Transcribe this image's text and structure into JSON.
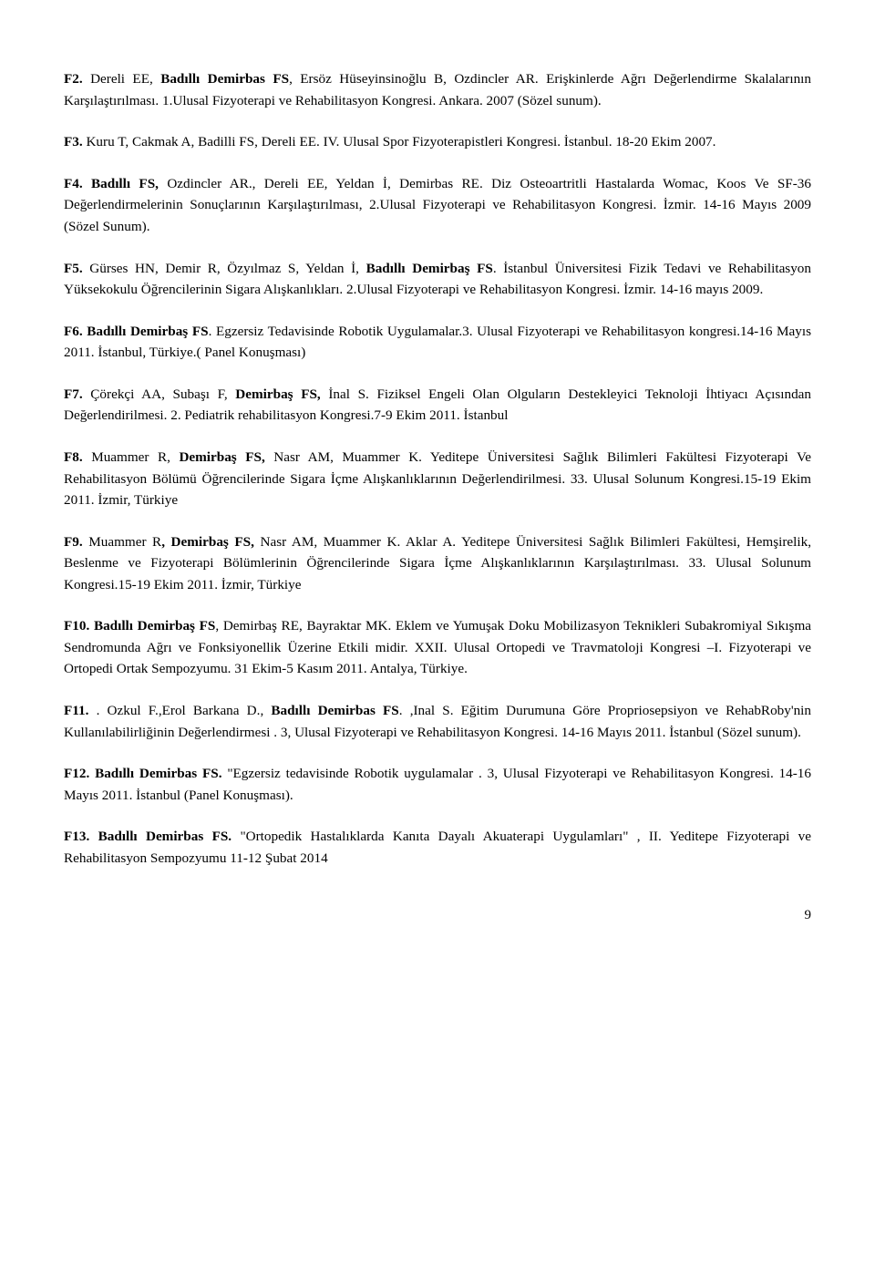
{
  "entries": [
    {
      "parts": [
        {
          "t": "F2. ",
          "b": true
        },
        {
          "t": "Dereli EE, ",
          "b": false
        },
        {
          "t": "Badıllı Demirbas FS",
          "b": true
        },
        {
          "t": ", Ersöz Hüseyinsinoğlu B, Ozdincler AR. Erişkinlerde Ağrı Değerlendirme Skalalarının Karşılaştırılması. 1.Ulusal Fizyoterapi ve Rehabilitasyon Kongresi. Ankara. 2007 (Sözel sunum).",
          "b": false
        }
      ]
    },
    {
      "parts": [
        {
          "t": "F3. ",
          "b": true
        },
        {
          "t": "Kuru T, Cakmak A, Badilli FS, Dereli EE. IV. Ulusal Spor Fizyoterapistleri Kongresi. İstanbul. 18-20 Ekim 2007.",
          "b": false
        }
      ]
    },
    {
      "parts": [
        {
          "t": "F4. Badıllı FS, ",
          "b": true
        },
        {
          "t": "Ozdincler AR., Dereli EE, Yeldan İ, Demirbas RE. Diz Osteoartritli Hastalarda Womac, Koos Ve SF-36 Değerlendirmelerinin Sonuçlarının Karşılaştırılması, 2.Ulusal Fizyoterapi ve Rehabilitasyon Kongresi. İzmir. 14-16 Mayıs 2009  (Sözel Sunum).",
          "b": false
        }
      ]
    },
    {
      "parts": [
        {
          "t": "F5. ",
          "b": true
        },
        {
          "t": "Gürses HN, Demir R, Özyılmaz S, Yeldan İ, ",
          "b": false
        },
        {
          "t": "Badıllı Demirbaş FS",
          "b": true
        },
        {
          "t": ". İstanbul Üniversitesi Fizik Tedavi ve Rehabilitasyon Yüksekokulu Öğrencilerinin Sigara Alışkanlıkları. 2.Ulusal Fizyoterapi ve Rehabilitasyon Kongresi. İzmir. 14-16 mayıs 2009.",
          "b": false
        }
      ]
    },
    {
      "parts": [
        {
          "t": "F6. Badıllı Demirbaş FS",
          "b": true
        },
        {
          "t": ". Egzersiz Tedavisinde Robotik Uygulamalar.3. Ulusal Fizyoterapi ve Rehabilitasyon kongresi.14-16 Mayıs 2011. İstanbul, Türkiye.( Panel Konuşması)",
          "b": false
        }
      ]
    },
    {
      "parts": [
        {
          "t": "F7. ",
          "b": true
        },
        {
          "t": "Çörekçi AA, Subaşı F, ",
          "b": false
        },
        {
          "t": "Demirbaş FS, ",
          "b": true
        },
        {
          "t": "İnal S. Fiziksel Engeli Olan Olguların Destekleyici Teknoloji İhtiyacı Açısından Değerlendirilmesi. 2. Pediatrik rehabilitasyon Kongresi.7-9 Ekim 2011. İstanbul",
          "b": false
        }
      ]
    },
    {
      "parts": [
        {
          "t": "F8. ",
          "b": true
        },
        {
          "t": "Muammer R, ",
          "b": false
        },
        {
          "t": "Demirbaş FS, ",
          "b": true
        },
        {
          "t": "Nasr AM, Muammer K. Yeditepe Üniversitesi Sağlık Bilimleri Fakültesi Fizyoterapi Ve Rehabilitasyon Bölümü Öğrencilerinde Sigara İçme Alışkanlıklarının Değerlendirilmesi. 33. Ulusal Solunum Kongresi.15-19 Ekim 2011. İzmir, Türkiye",
          "b": false
        }
      ]
    },
    {
      "parts": [
        {
          "t": "F9. ",
          "b": true
        },
        {
          "t": "Muammer R",
          "b": false
        },
        {
          "t": ", Demirbaş FS, ",
          "b": true
        },
        {
          "t": "Nasr AM, Muammer K. Aklar A. Yeditepe Üniversitesi Sağlık Bilimleri Fakültesi, Hemşirelik, Beslenme ve Fizyoterapi Bölümlerinin Öğrencilerinde Sigara İçme Alışkanlıklarının Karşılaştırılması. 33. Ulusal Solunum Kongresi.15-19 Ekim 2011. İzmir, Türkiye",
          "b": false
        }
      ]
    },
    {
      "parts": [
        {
          "t": "F10. Badıllı Demirbaş FS",
          "b": true
        },
        {
          "t": ", Demirbaş RE, Bayraktar MK. Eklem ve Yumuşak Doku Mobilizasyon Teknikleri Subakromiyal Sıkışma Sendromunda Ağrı ve Fonksiyonellik Üzerine Etkili midir. XXII. Ulusal Ortopedi ve Travmatoloji Kongresi –I. Fizyoterapi ve Ortopedi Ortak Sempozyumu. 31 Ekim-5 Kasım 2011. Antalya, Türkiye.",
          "b": false
        }
      ]
    },
    {
      "parts": [
        {
          "t": "F11. ",
          "b": true
        },
        {
          "t": ". Ozkul F.,Erol Barkana D., ",
          "b": false
        },
        {
          "t": "Badıllı Demirbas FS",
          "b": true
        },
        {
          "t": ". ,Inal S. Eğitim Durumuna Göre Propriosepsiyon ve RehabRoby'nin Kullanılabilirliğinin Değerlendirmesi .  3, Ulusal Fizyoterapi ve Rehabilitasyon Kongresi. 14-16 Mayıs 2011. İstanbul (Sözel sunum).",
          "b": false
        }
      ]
    },
    {
      "parts": [
        {
          "t": "F12. Badıllı Demirbas FS. ",
          "b": true
        },
        {
          "t": "\"Egzersiz tedavisinde Robotik uygulamalar . 3, Ulusal Fizyoterapi ve Rehabilitasyon Kongresi. 14-16 Mayıs 2011. İstanbul (Panel Konuşması).",
          "b": false
        }
      ]
    },
    {
      "parts": [
        {
          "t": "F13.  Badıllı Demirbas FS. ",
          "b": true
        },
        {
          "t": "\"Ortopedik Hastalıklarda Kanıta Dayalı Akuaterapi Uygulamları\" , II. Yeditepe Fizyoterapi ve Rehabilitasyon Sempozyumu 11-12 Şubat 2014",
          "b": false
        }
      ]
    }
  ],
  "pageNumber": "9"
}
